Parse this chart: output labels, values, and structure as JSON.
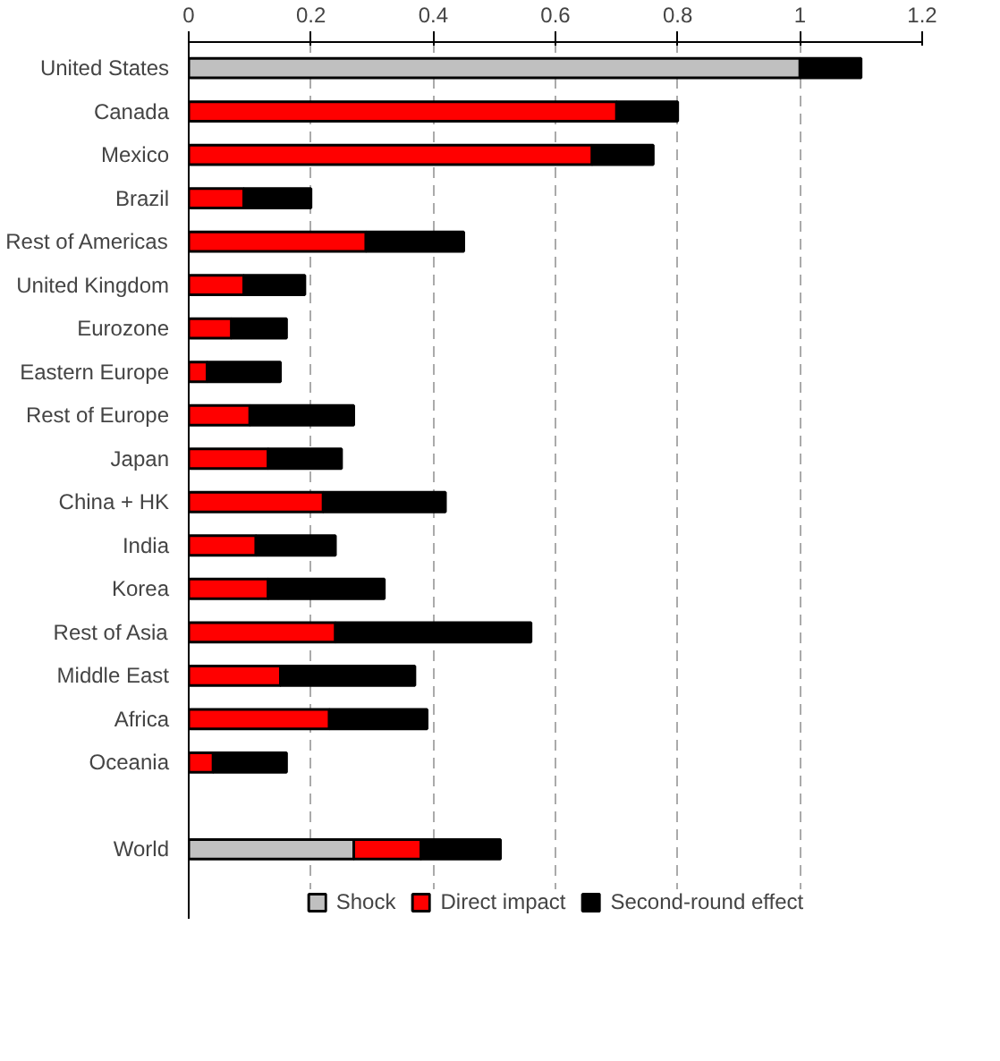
{
  "chart_data": {
    "type": "bar",
    "orientation": "horizontal",
    "stacked": true,
    "categories": [
      "United States",
      "Canada",
      "Mexico",
      "Brazil",
      "Rest of Americas",
      "United Kingdom",
      "Eurozone",
      "Eastern Europe",
      "Rest of Europe",
      "Japan",
      "China + HK",
      "India",
      "Korea",
      "Rest of Asia",
      "Middle East",
      "Africa",
      "Oceania",
      null,
      "World"
    ],
    "series": [
      {
        "name": "Shock",
        "color": "#c0c0c0",
        "values": [
          1.0,
          null,
          null,
          null,
          null,
          null,
          null,
          null,
          null,
          null,
          null,
          null,
          null,
          null,
          null,
          null,
          null,
          null,
          0.27
        ]
      },
      {
        "name": "Direct impact",
        "color": "#ff0000",
        "values": [
          null,
          0.7,
          0.66,
          0.09,
          0.29,
          0.09,
          0.07,
          0.03,
          0.1,
          0.13,
          0.22,
          0.11,
          0.13,
          0.24,
          0.15,
          0.23,
          0.04,
          null,
          0.11
        ]
      },
      {
        "name": "Second-round effect",
        "color": "#000000",
        "values": [
          0.1,
          0.1,
          0.1,
          0.11,
          0.16,
          0.1,
          0.09,
          0.12,
          0.17,
          0.12,
          0.2,
          0.13,
          0.19,
          0.32,
          0.22,
          0.16,
          0.12,
          null,
          0.13
        ]
      }
    ],
    "xlim": [
      0,
      1.2
    ],
    "xticks": [
      0,
      0.2,
      0.4,
      0.6,
      0.8,
      1,
      1.2
    ],
    "grid": "x",
    "legend": "bottom"
  }
}
